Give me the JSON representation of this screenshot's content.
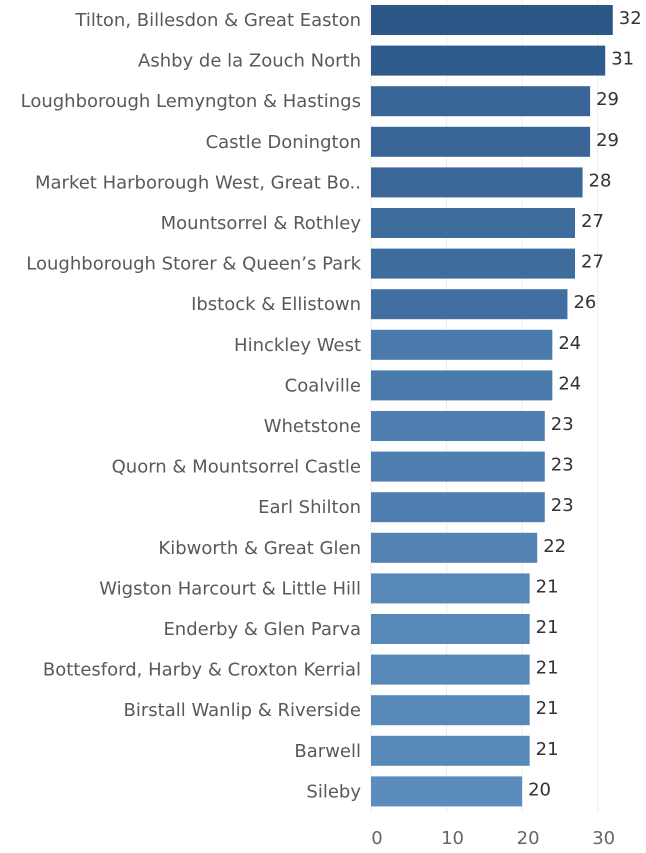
{
  "chart_data": {
    "type": "bar",
    "categories": [
      "Tilton, Billesdon & Great Easton",
      "Ashby de la Zouch North",
      "Loughborough Lemyngton & Hastings",
      "Castle Donington",
      "Market Harborough West, Great Bo..",
      "Mountsorrel & Rothley",
      "Loughborough Storer & Queen’s Park",
      "Ibstock & Ellistown",
      "Hinckley West",
      "Coalville",
      "Whetstone",
      "Quorn & Mountsorrel Castle",
      "Earl Shilton",
      "Kibworth & Great Glen",
      "Wigston Harcourt & Little Hill",
      "Enderby & Glen Parva",
      "Bottesford, Harby & Croxton Kerrial",
      "Birstall Wanlip & Riverside",
      "Barwell",
      "Sileby"
    ],
    "values": [
      32,
      31,
      29,
      29,
      28,
      27,
      27,
      26,
      24,
      24,
      23,
      23,
      23,
      22,
      21,
      21,
      21,
      21,
      21,
      20
    ],
    "colors": [
      "#2b5686",
      "#2f5b8c",
      "#386596",
      "#386596",
      "#3b6899",
      "#3e6c9d",
      "#3e6c9d",
      "#426fa1",
      "#4a7aab",
      "#4a7aab",
      "#4e7fb0",
      "#4e7fb0",
      "#4e7fb0",
      "#5283b3",
      "#5688b8",
      "#5688b8",
      "#5688b8",
      "#5688b8",
      "#5688b8",
      "#5a8cbc"
    ],
    "xlim": [
      0,
      36
    ],
    "xticks": [
      0,
      10,
      20,
      30
    ],
    "grid": true
  }
}
